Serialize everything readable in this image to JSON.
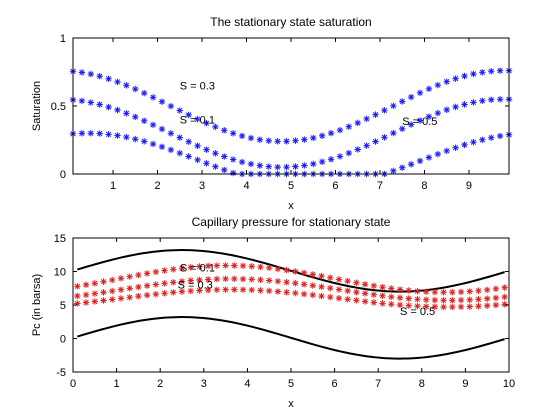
{
  "colors": {
    "saturation_markers": "#1a1aff",
    "pressure_markers": "#e02020",
    "bounds_line": "#000000",
    "axes": "#000000"
  },
  "chart_data": [
    {
      "type": "scatter",
      "title": "The stationary state saturation",
      "xlabel": "x",
      "ylabel": "Saturation",
      "xlim": [
        0.1,
        9.9
      ],
      "ylim": [
        0,
        1
      ],
      "xticks": [
        1,
        2,
        3,
        4,
        5,
        6,
        7,
        8,
        9
      ],
      "yticks": [
        0,
        0.5,
        1
      ],
      "ytick_labels": [
        "0",
        "0.5",
        "1"
      ],
      "grid": false,
      "marker": "*",
      "marker_color": "#1a1aff",
      "series_x": [
        0.1,
        9.9,
        50
      ],
      "series": [
        {
          "label": "S = 0.1",
          "formula": {
            "base": 0.1,
            "amplitude": 0.2,
            "phase": 1.3,
            "min_clip": 0
          }
        },
        {
          "label": "S = 0.3",
          "formula": {
            "base": 0.3,
            "amplitude": 0.25,
            "phase": 1.7
          }
        },
        {
          "label": "S = 0.5",
          "formula": {
            "base": 0.5,
            "amplitude": 0.26,
            "phase": 1.7
          }
        }
      ],
      "annotations": [
        {
          "text": "S = 0.3",
          "x": 2.5,
          "y": 0.62
        },
        {
          "text": "S = 0.1",
          "x": 2.5,
          "y": 0.37
        },
        {
          "text": "S = 0.5",
          "x": 7.5,
          "y": 0.36
        }
      ]
    },
    {
      "type": "line",
      "title": "Capillary pressure for stationary state",
      "xlabel": "x",
      "ylabel": "Pc (in barsa)",
      "xlim": [
        0,
        10
      ],
      "ylim": [
        -5,
        15
      ],
      "xticks": [
        0,
        1,
        2,
        3,
        4,
        5,
        6,
        7,
        8,
        9,
        10
      ],
      "yticks": [
        -5,
        0,
        5,
        10,
        15
      ],
      "grid": false,
      "marker": "*",
      "marker_color": "#e02020",
      "series_x": [
        0.1,
        9.9,
        50
      ],
      "curves": [
        {
          "role": "upper bound",
          "style": "solid",
          "color": "#000000",
          "formula": {
            "base": 10.1,
            "amplitude": 3.1,
            "phase": 0
          }
        },
        {
          "role": "lower bound",
          "style": "solid",
          "color": "#000000",
          "formula": {
            "base": 0.1,
            "amplitude": 3.1,
            "phase": 0
          }
        },
        {
          "label": "S = 0.1",
          "style": "marker",
          "color": "#e02020",
          "formula": {
            "base": 8.9,
            "amplitude": 2.0,
            "phase": -0.65
          }
        },
        {
          "label": "S = 0.3",
          "style": "marker",
          "color": "#e02020",
          "formula": {
            "base": 7.3,
            "amplitude": 1.6,
            "phase": -0.7
          }
        },
        {
          "label": "S = 0.5",
          "style": "marker",
          "color": "#e02020",
          "formula": {
            "base": 6.0,
            "amplitude": 1.3,
            "phase": -0.7
          }
        }
      ],
      "annotations": [
        {
          "text": "S = 0.1",
          "x": 2.45,
          "y": 10.0
        },
        {
          "text": "S = 0.3",
          "x": 2.4,
          "y": 7.5
        },
        {
          "text": "S = 0.5",
          "x": 7.5,
          "y": 3.5
        }
      ]
    }
  ]
}
